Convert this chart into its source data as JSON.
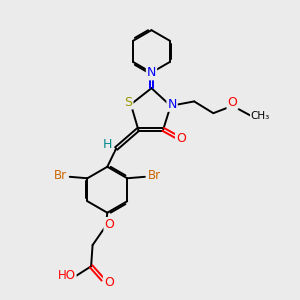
{
  "bg_color": "#ebebeb",
  "bond_color": "#000000",
  "bond_width": 1.4,
  "figsize": [
    3.0,
    3.0
  ],
  "dpi": 100,
  "colors": {
    "S": "#999900",
    "N": "#0000FF",
    "O": "#FF0000",
    "Br": "#CC6600",
    "H": "#008B8B",
    "C": "#000000"
  }
}
